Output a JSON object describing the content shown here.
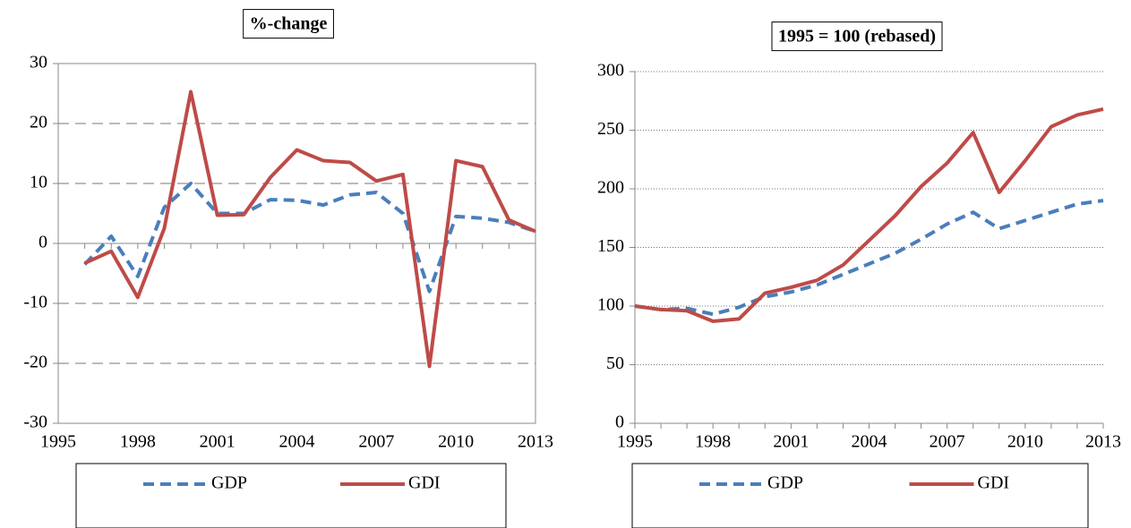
{
  "chart_data": [
    {
      "type": "line",
      "title": "%-change",
      "x": [
        1996,
        1997,
        1998,
        1999,
        2000,
        2001,
        2002,
        2003,
        2004,
        2005,
        2006,
        2007,
        2008,
        2009,
        2010,
        2011,
        2012,
        2013
      ],
      "series": [
        {
          "name": "GDP",
          "color": "#4a7ebb",
          "dash": "dashed",
          "values": [
            -3.5,
            1.2,
            -5.5,
            6,
            10,
            5,
            5,
            7.3,
            7.2,
            6.4,
            8.1,
            8.5,
            5,
            -8,
            4.5,
            4.2,
            3.5,
            2
          ]
        },
        {
          "name": "GDI",
          "color": "#be4b48",
          "dash": "solid",
          "values": [
            -3.3,
            -1.3,
            -9,
            2.5,
            25.3,
            4.7,
            4.8,
            11,
            15.6,
            13.8,
            13.5,
            10.4,
            11.5,
            -20.5,
            13.8,
            12.8,
            3.9,
            2
          ]
        }
      ],
      "xlim": [
        1995,
        2013
      ],
      "xticks": [
        1995,
        1998,
        2001,
        2004,
        2007,
        2010,
        2013
      ],
      "ylim": [
        -30,
        30
      ],
      "yticks": [
        -30,
        -20,
        -10,
        0,
        10,
        20,
        30
      ],
      "grid": true,
      "grid_style": "dashed",
      "frame": true
    },
    {
      "type": "line",
      "title": "1995 = 100 (rebased)",
      "x": [
        1995,
        1996,
        1997,
        1998,
        1999,
        2000,
        2001,
        2002,
        2003,
        2004,
        2005,
        2006,
        2007,
        2008,
        2009,
        2010,
        2011,
        2012,
        2013
      ],
      "series": [
        {
          "name": "GDP",
          "color": "#4a7ebb",
          "dash": "dashed",
          "values": [
            100,
            97,
            98,
            93,
            99,
            108,
            112,
            118,
            127,
            136,
            145,
            157,
            170,
            180,
            166,
            173,
            180,
            187,
            190
          ]
        },
        {
          "name": "GDI",
          "color": "#be4b48",
          "dash": "solid",
          "values": [
            100,
            97,
            96,
            87,
            89,
            111,
            116,
            122,
            135,
            156,
            177,
            202,
            222,
            248,
            197,
            224,
            253,
            263,
            268
          ]
        }
      ],
      "xlim": [
        1995,
        2013
      ],
      "xticks": [
        1995,
        1998,
        2001,
        2004,
        2007,
        2010,
        2013
      ],
      "ylim": [
        0,
        300
      ],
      "yticks": [
        0,
        50,
        100,
        150,
        200,
        250,
        300
      ],
      "grid": true,
      "grid_style": "dotted",
      "frame": false
    }
  ]
}
